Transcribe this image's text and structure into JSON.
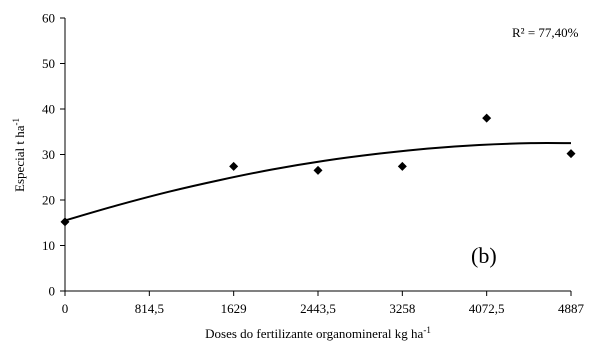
{
  "chart_data": {
    "type": "scatter",
    "title": "",
    "xlabel": "Doses do fertilizante  organomineral kg ha",
    "xlabel_sup": "-1",
    "ylabel": "Especial t ha",
    "ylabel_sup": "-1",
    "xlim": [
      0,
      4887
    ],
    "ylim": [
      0,
      60
    ],
    "x_ticks": [
      0,
      814.5,
      1629,
      2443.5,
      3258,
      4072.5,
      4887
    ],
    "x_tick_labels": [
      "0",
      "814,5",
      "1629",
      "2443,5",
      "3258",
      "4072,5",
      "4887"
    ],
    "y_ticks": [
      0,
      10,
      20,
      30,
      40,
      50,
      60
    ],
    "y_tick_labels": [
      "0",
      "10",
      "20",
      "30",
      "40",
      "50",
      "60"
    ],
    "series": [
      {
        "kind": "points",
        "marker": "diamond",
        "x": [
          0,
          1629,
          2443.5,
          3258,
          4072.5,
          4887
        ],
        "y": [
          15.2,
          27.4,
          26.5,
          27.4,
          38.0,
          30.2
        ]
      },
      {
        "kind": "fit-curve",
        "x": [
          0,
          500,
          1000,
          1500,
          2000,
          2500,
          3000,
          3500,
          4000,
          4500,
          4887
        ],
        "y": [
          15.5,
          18.8,
          21.8,
          24.4,
          26.7,
          28.6,
          30.1,
          31.3,
          32.1,
          32.5,
          32.5
        ]
      }
    ],
    "annotations": {
      "r2": "R² = 77,40%",
      "panel": "(b)"
    },
    "grid": false,
    "legend": "none"
  }
}
